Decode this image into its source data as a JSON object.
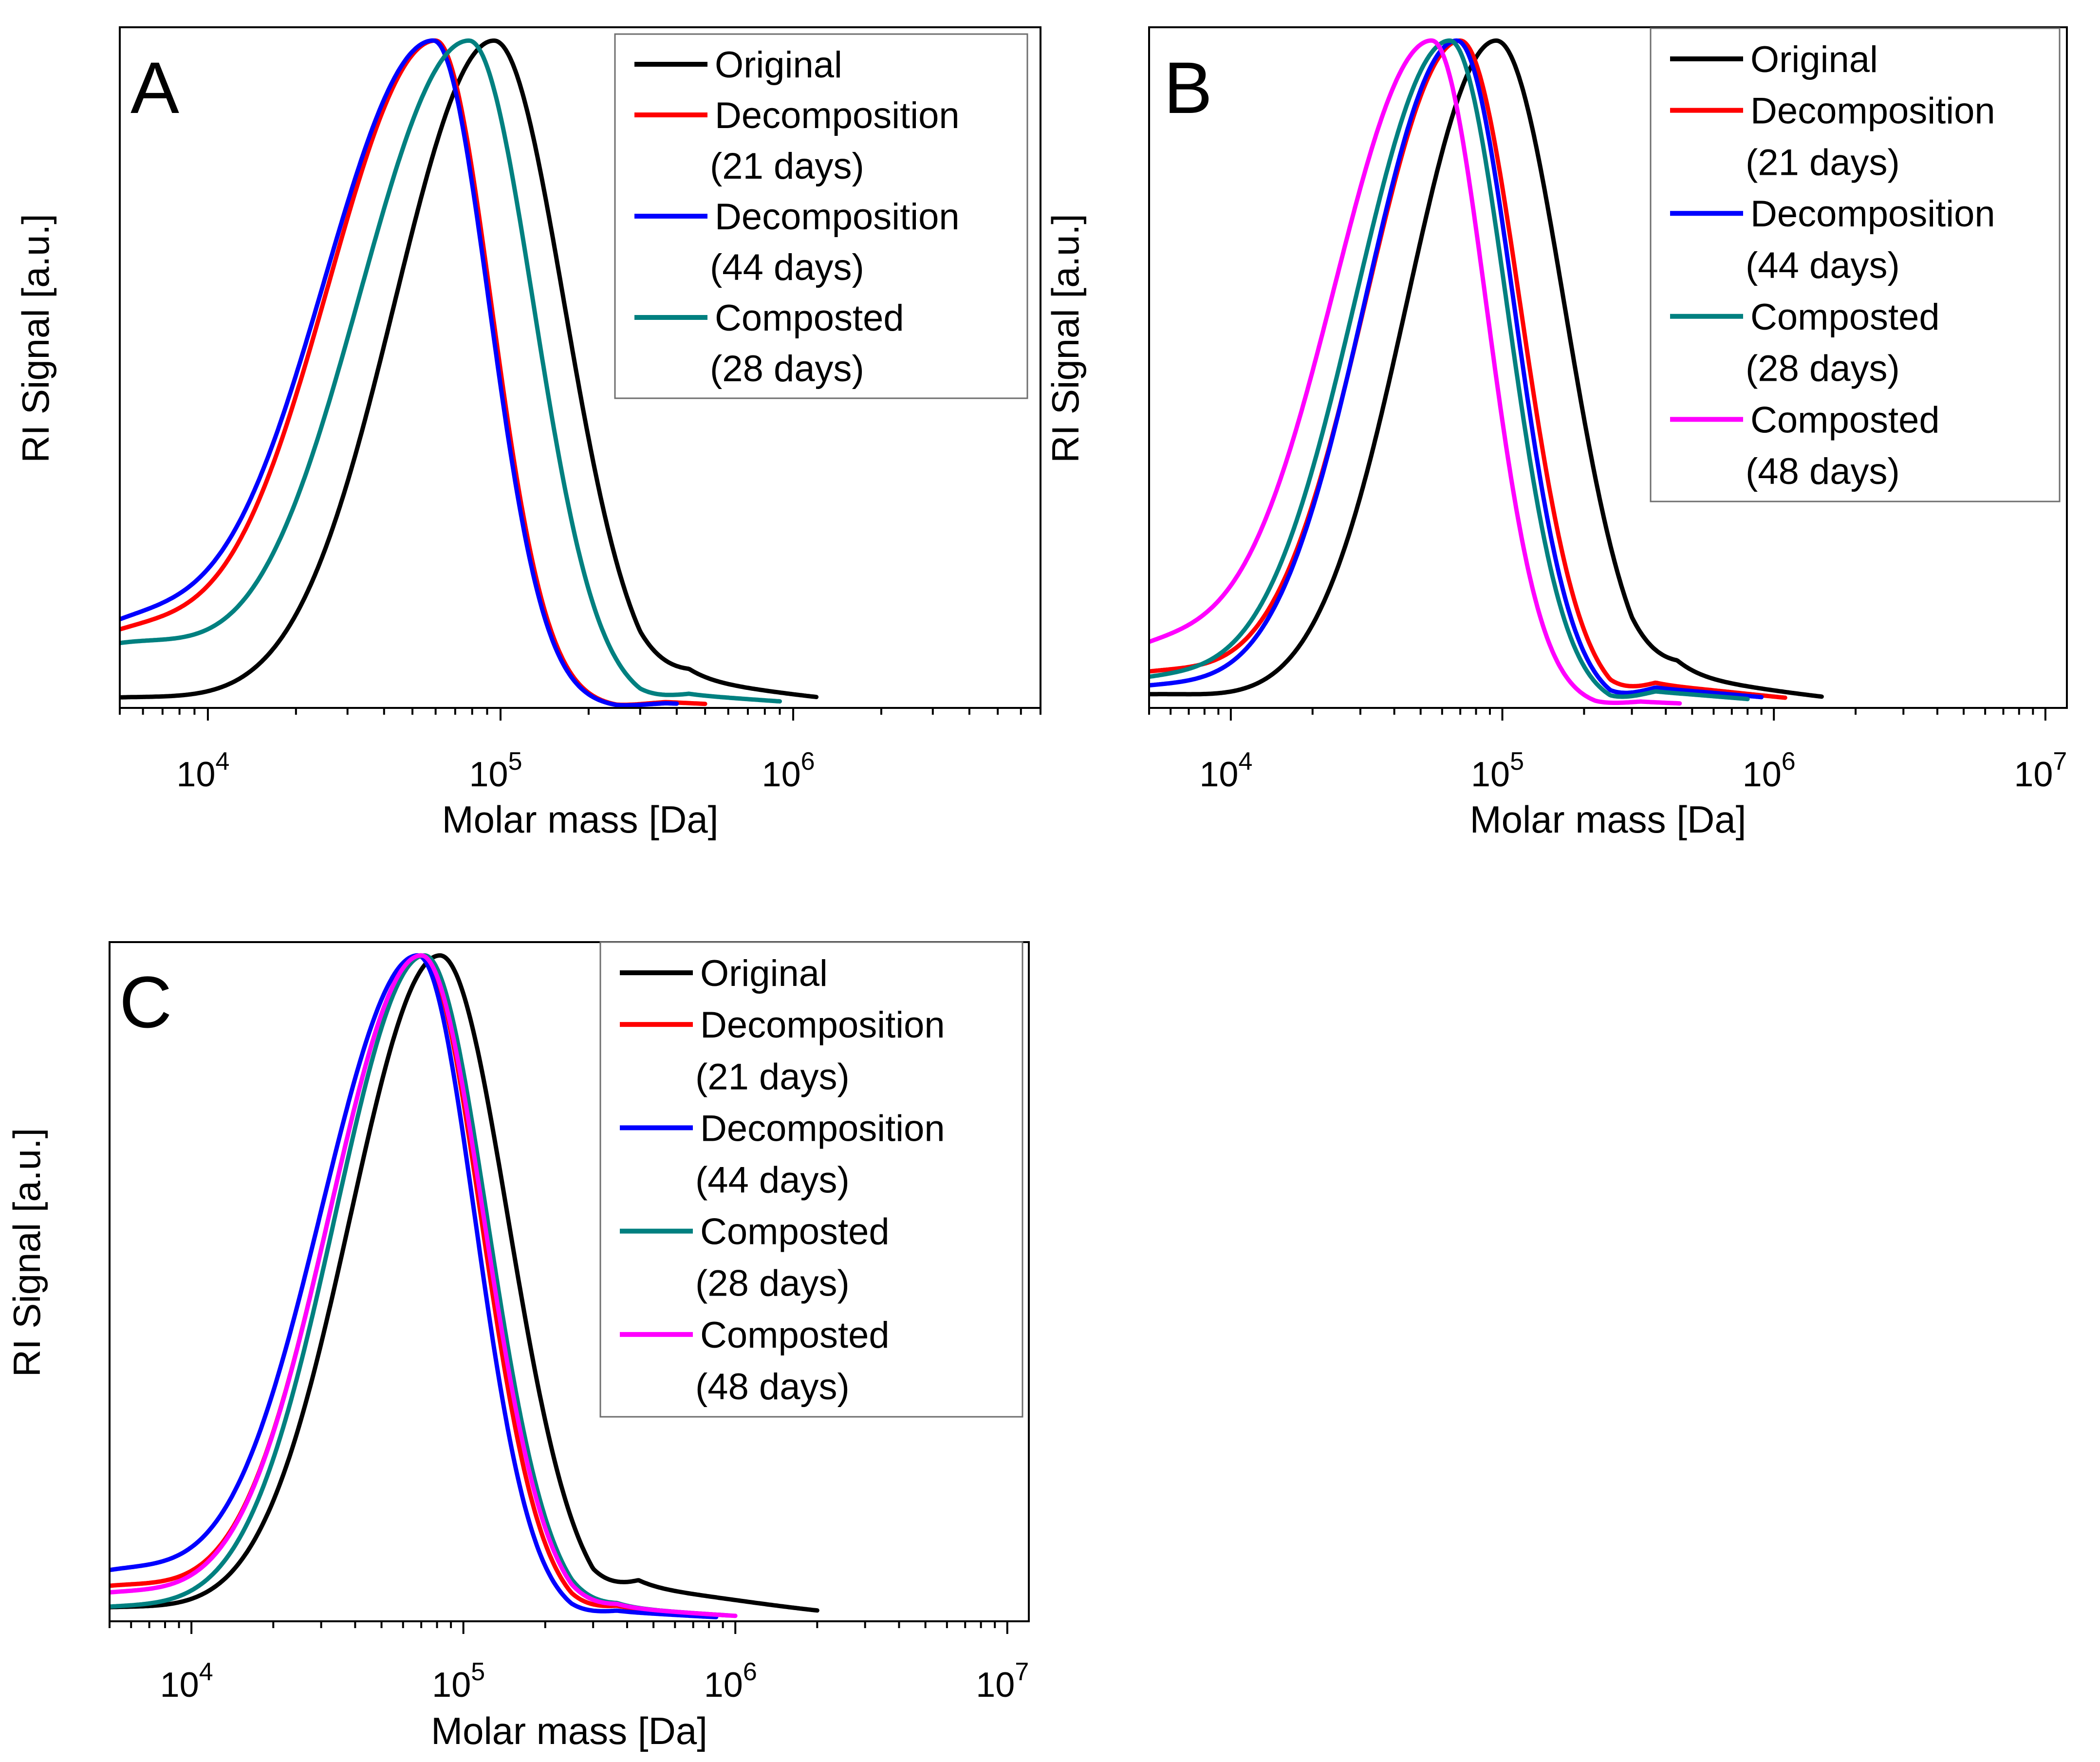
{
  "chart_data": [
    {
      "type": "line",
      "panel_label": "A",
      "title": "",
      "xlabel": "Molar mass [Da]",
      "ylabel": "RI Signal [a.u.]",
      "xscale": "log",
      "xlim": [
        5000,
        7000000
      ],
      "ylim": [
        0,
        1.02
      ],
      "x_ticks": [
        {
          "value": 10000,
          "base": "10",
          "exp": "4"
        },
        {
          "value": 100000,
          "base": "10",
          "exp": "5"
        },
        {
          "value": 1000000,
          "base": "10",
          "exp": "6"
        }
      ],
      "legend_position": "top-right",
      "series": [
        {
          "name": "Original",
          "legend": [
            "Original"
          ],
          "color": "#000000",
          "peak": 95000,
          "sl": 0.34,
          "sr": 0.24,
          "low": 0.015,
          "tail": 0.04,
          "tail_start": 300000,
          "tail_width": 0.45,
          "end": 1200000
        },
        {
          "name": "Decomposition (21 days)",
          "legend": [
            "Decomposition",
            "(21 days)"
          ],
          "color": "#ff0000",
          "peak": 60000,
          "sl": 0.38,
          "sr": 0.19,
          "low": 0.1,
          "tail": 0.01,
          "tail_start": 250000,
          "tail_width": 0.3,
          "end": 500000
        },
        {
          "name": "Decomposition (44 days)",
          "legend": [
            "Decomposition",
            "(44 days)"
          ],
          "color": "#0000ff",
          "peak": 59000,
          "sl": 0.39,
          "sr": 0.19,
          "low": 0.11,
          "tail": 0.008,
          "tail_start": 250000,
          "tail_width": 0.3,
          "end": 400000
        },
        {
          "name": "Composted (28 days)",
          "legend": [
            "Composted",
            "(28 days)"
          ],
          "color": "#008080",
          "peak": 78000,
          "sl": 0.38,
          "sr": 0.22,
          "low": 0.09,
          "tail": 0.02,
          "tail_start": 300000,
          "tail_width": 0.4,
          "end": 900000
        }
      ]
    },
    {
      "type": "line",
      "panel_label": "B",
      "title": "",
      "xlabel": "Molar mass [Da]",
      "ylabel": "RI Signal [a.u.]",
      "xscale": "log",
      "xlim": [
        5000,
        12000000
      ],
      "ylim": [
        0,
        1.02
      ],
      "x_ticks": [
        {
          "value": 10000,
          "base": "10",
          "exp": "4"
        },
        {
          "value": 100000,
          "base": "10",
          "exp": "5"
        },
        {
          "value": 1000000,
          "base": "10",
          "exp": "6"
        },
        {
          "value": 10000000,
          "base": "10",
          "exp": "7"
        }
      ],
      "legend_position": "top-right",
      "series": [
        {
          "name": "Original",
          "legend": [
            "Original"
          ],
          "color": "#000000",
          "peak": 95000,
          "sl": 0.33,
          "sr": 0.25,
          "low": 0.02,
          "tail": 0.045,
          "tail_start": 300000,
          "tail_width": 0.5,
          "end": 1500000
        },
        {
          "name": "Decomposition (21 days)",
          "legend": [
            "Decomposition",
            "(21 days)"
          ],
          "color": "#ff0000",
          "peak": 70000,
          "sl": 0.35,
          "sr": 0.22,
          "low": 0.05,
          "tail": 0.035,
          "tail_start": 250000,
          "tail_width": 0.5,
          "end": 1100000
        },
        {
          "name": "Decomposition (44 days)",
          "legend": [
            "Decomposition",
            "(44 days)"
          ],
          "color": "#0000ff",
          "peak": 68000,
          "sl": 0.34,
          "sr": 0.21,
          "low": 0.03,
          "tail": 0.03,
          "tail_start": 250000,
          "tail_width": 0.5,
          "end": 900000
        },
        {
          "name": "Composted (28 days)",
          "legend": [
            "Composted",
            "(28 days)"
          ],
          "color": "#008080",
          "peak": 64000,
          "sl": 0.35,
          "sr": 0.21,
          "low": 0.04,
          "tail": 0.025,
          "tail_start": 250000,
          "tail_width": 0.45,
          "end": 800000
        },
        {
          "name": "Composted (48 days)",
          "legend": [
            "Composted",
            "(48 days)"
          ],
          "color": "#ff00ff",
          "peak": 55000,
          "sl": 0.37,
          "sr": 0.2,
          "low": 0.08,
          "tail": 0.01,
          "tail_start": 220000,
          "tail_width": 0.35,
          "end": 450000
        }
      ]
    },
    {
      "type": "line",
      "panel_label": "C",
      "title": "",
      "xlabel": "Molar mass [Da]",
      "ylabel": "RI Signal [a.u.]",
      "xscale": "log",
      "xlim": [
        5000,
        12000000
      ],
      "ylim": [
        0,
        1.02
      ],
      "x_ticks": [
        {
          "value": 10000,
          "base": "10",
          "exp": "4"
        },
        {
          "value": 100000,
          "base": "10",
          "exp": "5"
        },
        {
          "value": 1000000,
          "base": "10",
          "exp": "6"
        },
        {
          "value": 10000000,
          "base": "10",
          "exp": "7"
        }
      ],
      "legend_position": "top-right",
      "series": [
        {
          "name": "Original",
          "legend": [
            "Original"
          ],
          "color": "#000000",
          "peak": 82000,
          "sl": 0.33,
          "sr": 0.25,
          "low": 0.02,
          "tail": 0.05,
          "tail_start": 300000,
          "tail_width": 0.55,
          "end": 2000000
        },
        {
          "name": "Decomposition (21 days)",
          "legend": [
            "Decomposition",
            "(21 days)"
          ],
          "color": "#ff0000",
          "peak": 70000,
          "sl": 0.34,
          "sr": 0.22,
          "low": 0.05,
          "tail": 0.02,
          "tail_start": 250000,
          "tail_width": 0.45,
          "end": 900000
        },
        {
          "name": "Decomposition (44 days)",
          "legend": [
            "Decomposition",
            "(44 days)"
          ],
          "color": "#0000ff",
          "peak": 68000,
          "sl": 0.36,
          "sr": 0.21,
          "low": 0.07,
          "tail": 0.015,
          "tail_start": 250000,
          "tail_width": 0.4,
          "end": 850000
        },
        {
          "name": "Composted (28 days)",
          "legend": [
            "Composted",
            "(28 days)"
          ],
          "color": "#008080",
          "peak": 72000,
          "sl": 0.33,
          "sr": 0.23,
          "low": 0.02,
          "tail": 0.02,
          "tail_start": 250000,
          "tail_width": 0.45,
          "end": 950000
        },
        {
          "name": "Composted (48 days)",
          "legend": [
            "Composted",
            "(48 days)"
          ],
          "color": "#ff00ff",
          "peak": 70000,
          "sl": 0.34,
          "sr": 0.23,
          "low": 0.04,
          "tail": 0.02,
          "tail_start": 250000,
          "tail_width": 0.45,
          "end": 1000000
        }
      ]
    }
  ]
}
